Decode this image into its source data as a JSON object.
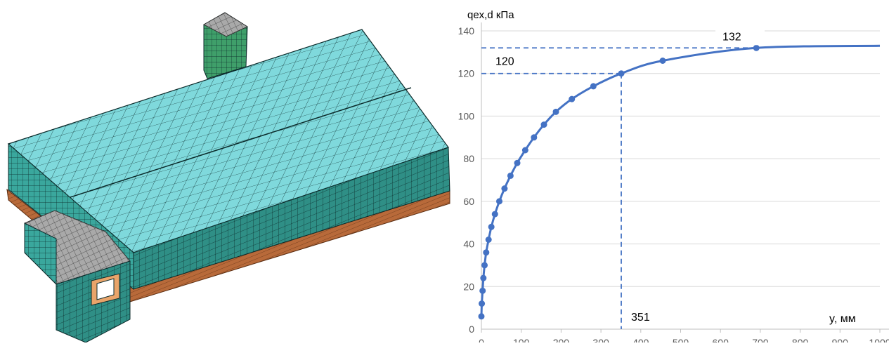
{
  "model_view": {
    "icon": "fem-building-mesh",
    "colors": {
      "roof": "#7fd9dc",
      "wall": "#2f8f86",
      "wall_light": "#5cc7bf",
      "tower": "#3f9f6a",
      "gray_top": "#a9a9a9",
      "base": "#b86a3a",
      "grid": "#0b2a2a"
    }
  },
  "chart_data": {
    "type": "line",
    "ylabel": "qex,d  кПа",
    "xlabel": "y, мм",
    "xlim": [
      0,
      1000
    ],
    "ylim": [
      0,
      140
    ],
    "xticks": [
      0,
      100,
      200,
      300,
      400,
      500,
      600,
      700,
      800,
      900,
      1000
    ],
    "yticks": [
      0,
      20,
      40,
      60,
      80,
      100,
      120,
      140
    ],
    "xtick_labels": [
      "0",
      "100",
      "200",
      "300",
      "400",
      "500",
      "600",
      "700",
      "800",
      "900",
      "1000"
    ],
    "ytick_labels": [
      "0",
      "20",
      "40",
      "60",
      "80",
      "100",
      "120",
      "140"
    ],
    "grid": "horizontal",
    "series": [
      {
        "color": "#4472c4",
        "markers": true,
        "points": [
          [
            0,
            6
          ],
          [
            1,
            12
          ],
          [
            3,
            18
          ],
          [
            5,
            24
          ],
          [
            8,
            30
          ],
          [
            12,
            36
          ],
          [
            18,
            42
          ],
          [
            25,
            48
          ],
          [
            34,
            54
          ],
          [
            45,
            60
          ],
          [
            58,
            66
          ],
          [
            73,
            72
          ],
          [
            90,
            78
          ],
          [
            110,
            84
          ],
          [
            132,
            90
          ],
          [
            157,
            96
          ],
          [
            187,
            102
          ],
          [
            227,
            108
          ],
          [
            281,
            114
          ],
          [
            351,
            120
          ],
          [
            455,
            126
          ],
          [
            690,
            132
          ],
          [
            1000,
            133
          ]
        ],
        "marker_indices": [
          0,
          1,
          2,
          3,
          4,
          5,
          6,
          7,
          8,
          9,
          10,
          11,
          12,
          13,
          14,
          15,
          16,
          17,
          18,
          19,
          20,
          21
        ]
      }
    ],
    "annotations": [
      {
        "text": "120",
        "value": 120,
        "axis": "y"
      },
      {
        "text": "132",
        "value": 132,
        "axis": "y"
      },
      {
        "text": "351",
        "value": 351,
        "axis": "x"
      }
    ]
  }
}
